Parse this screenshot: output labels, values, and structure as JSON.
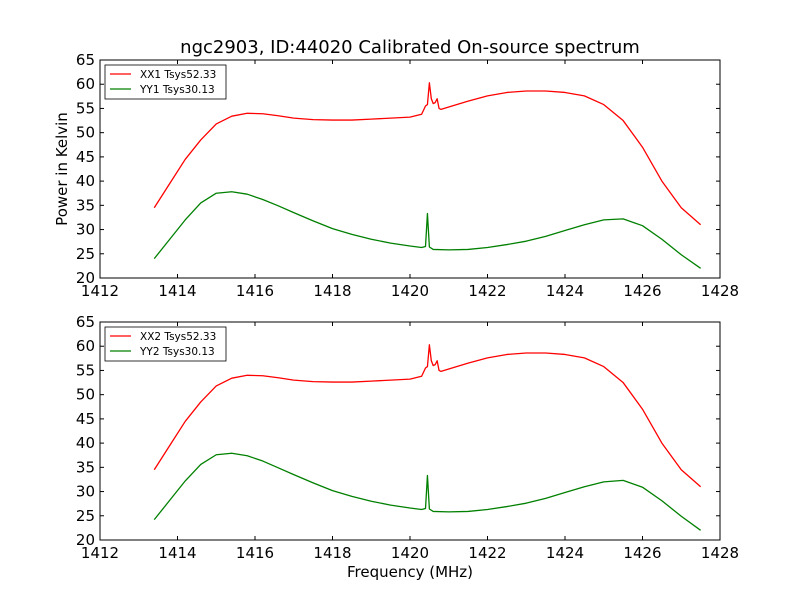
{
  "title": "ngc2903, ID:44020 Calibrated On-source spectrum",
  "colors": {
    "series_1": "#ff0000",
    "series_2": "#008000",
    "background": "#ffffff",
    "axes": "#000000"
  },
  "chart_data": [
    {
      "type": "line",
      "title": "ngc2903, ID:44020 Calibrated On-source spectrum",
      "xlabel": "",
      "ylabel": "Power in Kelvin",
      "xlim": [
        1412,
        1428
      ],
      "ylim": [
        20,
        65
      ],
      "xticks": [
        1412,
        1414,
        1416,
        1418,
        1420,
        1422,
        1424,
        1426,
        1428
      ],
      "yticks": [
        20,
        25,
        30,
        35,
        40,
        45,
        50,
        55,
        60,
        65
      ],
      "grid": false,
      "legend_position": "top-left",
      "series": [
        {
          "name": "XX1 Tsys52.33",
          "color": "#ff0000",
          "x": [
            1413.4,
            1413.8,
            1414.2,
            1414.6,
            1415.0,
            1415.4,
            1415.8,
            1416.2,
            1416.6,
            1417.0,
            1417.5,
            1418.0,
            1418.5,
            1419.0,
            1419.5,
            1420.0,
            1420.3,
            1420.4,
            1420.45,
            1420.5,
            1420.55,
            1420.6,
            1420.65,
            1420.7,
            1420.75,
            1420.8,
            1421.0,
            1421.5,
            1422.0,
            1422.5,
            1423.0,
            1423.5,
            1424.0,
            1424.5,
            1425.0,
            1425.5,
            1426.0,
            1426.5,
            1427.0,
            1427.5
          ],
          "values": [
            34.5,
            39.5,
            44.5,
            48.5,
            51.8,
            53.4,
            54.0,
            53.9,
            53.5,
            53.0,
            52.7,
            52.6,
            52.6,
            52.8,
            53.0,
            53.2,
            53.8,
            55.5,
            55.8,
            60.3,
            57.0,
            56.0,
            56.2,
            57.0,
            55.0,
            54.8,
            55.3,
            56.5,
            57.6,
            58.3,
            58.6,
            58.6,
            58.3,
            57.6,
            55.8,
            52.5,
            47.0,
            40.0,
            34.5,
            31.0
          ]
        },
        {
          "name": "YY1 Tsys30.13",
          "color": "#008000",
          "x": [
            1413.4,
            1413.8,
            1414.2,
            1414.6,
            1415.0,
            1415.4,
            1415.8,
            1416.2,
            1416.6,
            1417.0,
            1417.5,
            1418.0,
            1418.5,
            1419.0,
            1419.5,
            1420.0,
            1420.3,
            1420.4,
            1420.45,
            1420.5,
            1420.6,
            1421.0,
            1421.5,
            1422.0,
            1422.5,
            1423.0,
            1423.5,
            1424.0,
            1424.5,
            1425.0,
            1425.5,
            1426.0,
            1426.5,
            1427.0,
            1427.5
          ],
          "values": [
            24.0,
            28.0,
            32.0,
            35.5,
            37.5,
            37.8,
            37.3,
            36.2,
            34.9,
            33.5,
            31.8,
            30.2,
            29.0,
            28.0,
            27.2,
            26.6,
            26.3,
            26.5,
            33.3,
            26.4,
            25.9,
            25.8,
            25.9,
            26.3,
            26.9,
            27.6,
            28.6,
            29.8,
            31.0,
            32.0,
            32.2,
            30.8,
            28.0,
            24.8,
            22.0
          ]
        }
      ]
    },
    {
      "type": "line",
      "title": "",
      "xlabel": "Frequency (MHz)",
      "ylabel": "",
      "xlim": [
        1412,
        1428
      ],
      "ylim": [
        20,
        65
      ],
      "xticks": [
        1412,
        1414,
        1416,
        1418,
        1420,
        1422,
        1424,
        1426,
        1428
      ],
      "yticks": [
        20,
        25,
        30,
        35,
        40,
        45,
        50,
        55,
        60,
        65
      ],
      "grid": false,
      "legend_position": "top-left",
      "series": [
        {
          "name": "XX2 Tsys52.33",
          "color": "#ff0000",
          "x": [
            1413.4,
            1413.8,
            1414.2,
            1414.6,
            1415.0,
            1415.4,
            1415.8,
            1416.2,
            1416.6,
            1417.0,
            1417.5,
            1418.0,
            1418.5,
            1419.0,
            1419.5,
            1420.0,
            1420.3,
            1420.4,
            1420.45,
            1420.5,
            1420.55,
            1420.6,
            1420.65,
            1420.7,
            1420.75,
            1420.8,
            1421.0,
            1421.5,
            1422.0,
            1422.5,
            1423.0,
            1423.5,
            1424.0,
            1424.5,
            1425.0,
            1425.5,
            1426.0,
            1426.5,
            1427.0,
            1427.5
          ],
          "values": [
            34.5,
            39.5,
            44.5,
            48.5,
            51.8,
            53.4,
            54.0,
            53.9,
            53.5,
            53.0,
            52.7,
            52.6,
            52.6,
            52.8,
            53.0,
            53.2,
            53.8,
            55.5,
            55.8,
            60.3,
            57.0,
            56.0,
            56.2,
            57.0,
            55.0,
            54.8,
            55.3,
            56.5,
            57.6,
            58.3,
            58.6,
            58.6,
            58.3,
            57.6,
            55.8,
            52.5,
            47.0,
            40.0,
            34.5,
            31.0
          ]
        },
        {
          "name": "YY2 Tsys30.13",
          "color": "#008000",
          "x": [
            1413.4,
            1413.8,
            1414.2,
            1414.6,
            1415.0,
            1415.4,
            1415.8,
            1416.2,
            1416.6,
            1417.0,
            1417.5,
            1418.0,
            1418.5,
            1419.0,
            1419.5,
            1420.0,
            1420.3,
            1420.4,
            1420.45,
            1420.5,
            1420.6,
            1421.0,
            1421.5,
            1422.0,
            1422.5,
            1423.0,
            1423.5,
            1424.0,
            1424.5,
            1425.0,
            1425.5,
            1426.0,
            1426.5,
            1427.0,
            1427.5
          ],
          "values": [
            24.2,
            28.2,
            32.2,
            35.6,
            37.6,
            37.9,
            37.4,
            36.3,
            34.9,
            33.5,
            31.8,
            30.2,
            29.0,
            28.0,
            27.2,
            26.6,
            26.3,
            26.5,
            33.3,
            26.4,
            25.9,
            25.8,
            25.9,
            26.3,
            26.9,
            27.6,
            28.6,
            29.8,
            31.0,
            32.0,
            32.3,
            30.9,
            28.1,
            24.9,
            22.0
          ]
        }
      ]
    }
  ]
}
